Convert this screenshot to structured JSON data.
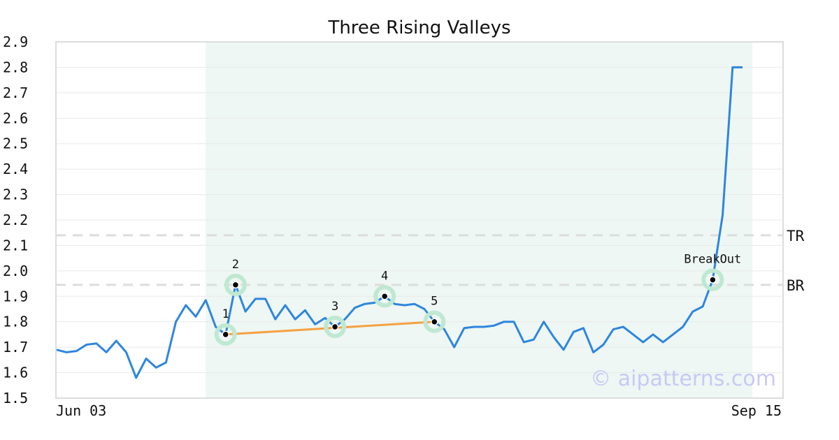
{
  "chart_data": {
    "type": "line",
    "title": "Three Rising Valleys",
    "xlabel": "",
    "ylabel": "",
    "ylim": [
      1.5,
      2.9
    ],
    "yticks": [
      "1.5",
      "1.6",
      "1.7",
      "1.8",
      "1.9",
      "2.0",
      "2.1",
      "2.2",
      "2.3",
      "2.4",
      "2.5",
      "2.6",
      "2.7",
      "2.8",
      "2.9"
    ],
    "x_tick_labels": [
      "Jun 03",
      "Sep 15"
    ],
    "grid": true,
    "colors": {
      "line": "#2e86de",
      "valley_line": "#f5a142",
      "highlight": "#eef7f3",
      "marker_halo": "#bfe8d2",
      "levels": "#dddddd"
    },
    "series": [
      {
        "values": [
          1.69,
          1.68,
          1.685,
          1.71,
          1.715,
          1.68,
          1.725,
          1.68,
          1.58,
          1.655,
          1.62,
          1.64,
          1.8,
          1.865,
          1.82,
          1.885,
          1.78,
          1.75,
          1.945,
          1.84,
          1.89,
          1.89,
          1.81,
          1.865,
          1.81,
          1.845,
          1.79,
          1.815,
          1.78,
          1.81,
          1.855,
          1.87,
          1.875,
          1.9,
          1.87,
          1.865,
          1.87,
          1.85,
          1.8,
          1.77,
          1.7,
          1.775,
          1.78,
          1.78,
          1.785,
          1.8,
          1.8,
          1.72,
          1.73,
          1.8,
          1.74,
          1.69,
          1.76,
          1.775,
          1.68,
          1.71,
          1.77,
          1.78,
          1.75,
          1.72,
          1.75,
          1.72,
          1.75,
          1.78,
          1.84,
          1.86,
          1.965,
          2.22,
          2.8,
          2.8
        ]
      }
    ],
    "highlight_range": [
      15,
      70
    ],
    "points": [
      {
        "label": "1",
        "index": 17,
        "value": 1.75
      },
      {
        "label": "2",
        "index": 18,
        "value": 1.945
      },
      {
        "label": "3",
        "index": 28,
        "value": 1.78
      },
      {
        "label": "4",
        "index": 33,
        "value": 1.9
      },
      {
        "label": "5",
        "index": 38,
        "value": 1.8
      },
      {
        "label": "BreakOut",
        "index": 66,
        "value": 1.965
      }
    ],
    "valley_line": {
      "from_index": 17,
      "from_value": 1.75,
      "to_index": 38,
      "to_value": 1.8
    },
    "levels": [
      {
        "label": "TR",
        "value": 2.14
      },
      {
        "label": "BR",
        "value": 1.945
      }
    ]
  },
  "watermark": "© aipatterns.com"
}
